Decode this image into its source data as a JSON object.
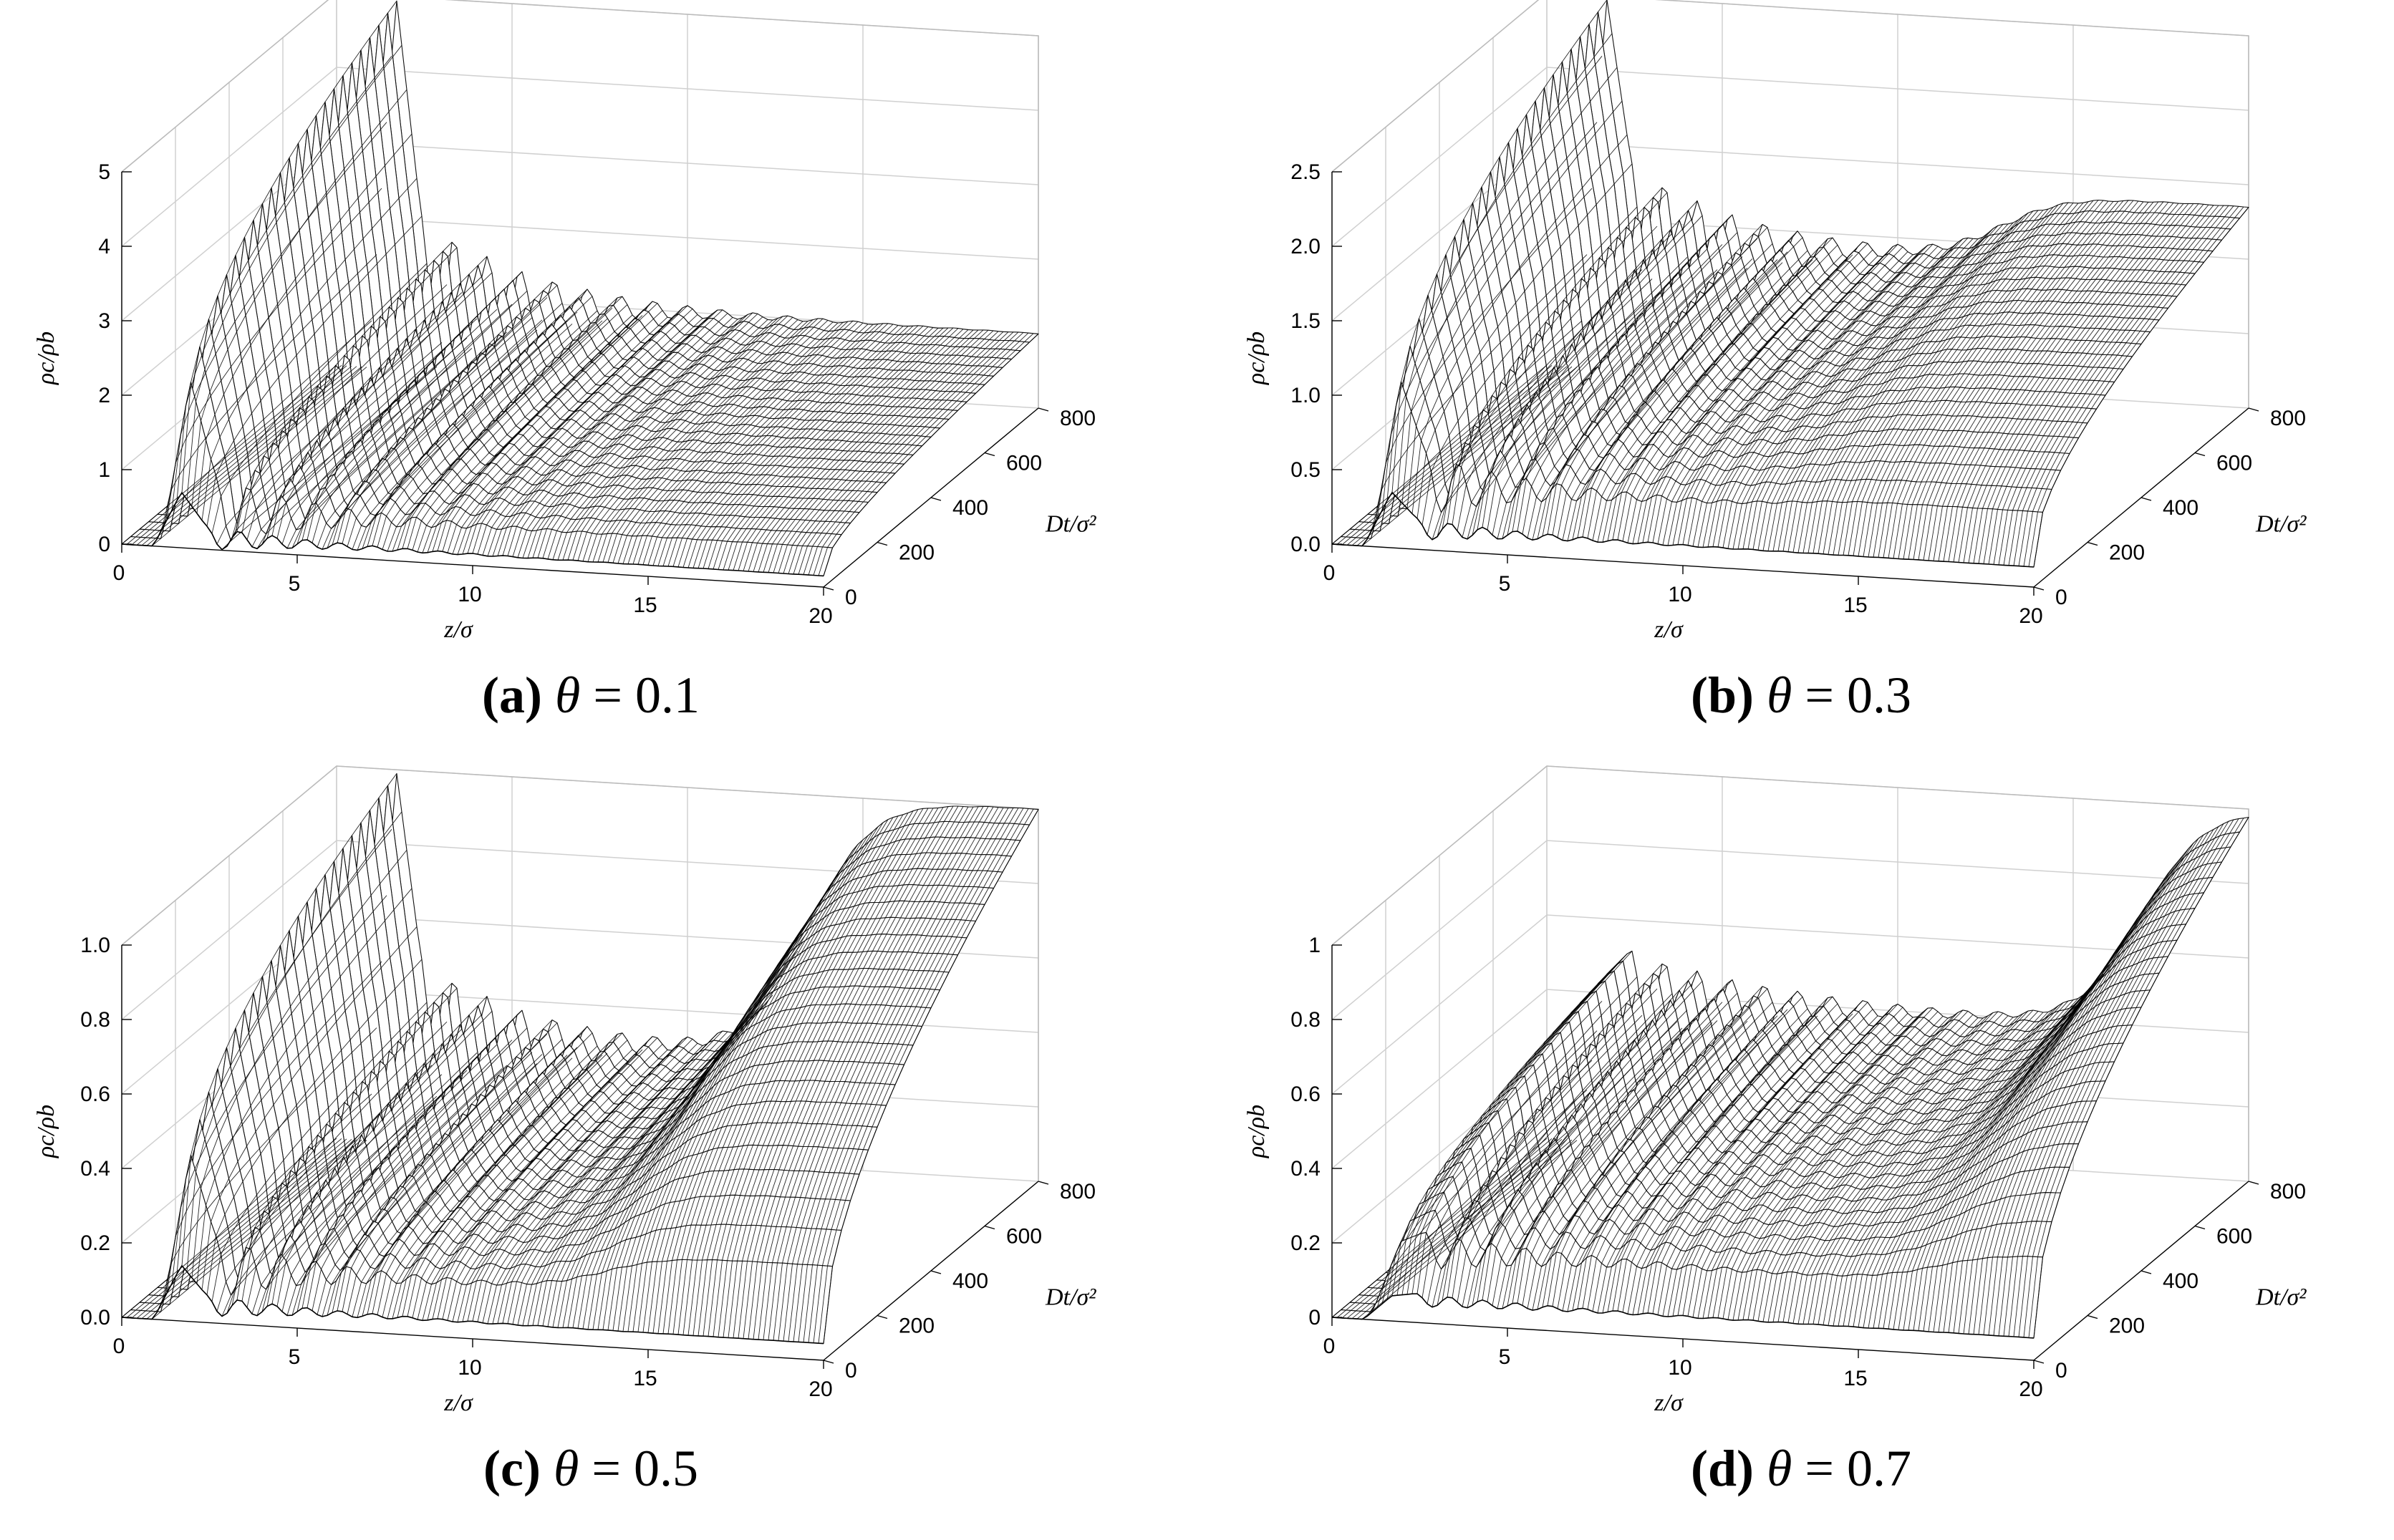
{
  "chart_data": [
    {
      "type": "surface3d",
      "caption": {
        "letter": "(a)",
        "symbol": "θ",
        "value": "= 0.1"
      },
      "xlabel": "z/σ",
      "ylabel": "Dt/σ²",
      "zlabel": "ρc/ρb",
      "x_ticks": [
        "0",
        "5",
        "10",
        "15",
        "20"
      ],
      "y_ticks": [
        "0",
        "200",
        "400",
        "600",
        "800"
      ],
      "z_ticks": [
        "0",
        "1",
        "2",
        "3",
        "4",
        "5"
      ],
      "xlim": [
        0,
        20
      ],
      "ylim": [
        0,
        800
      ],
      "zlim": [
        0,
        5
      ],
      "profile": {
        "peak_z": 1.7,
        "peak_value": 5.0,
        "oscillation": 1.1,
        "osc_decay": 3.0,
        "bulk_level": 1.0,
        "step_center": 22.0,
        "step_height": 0.0
      }
    },
    {
      "type": "surface3d",
      "caption": {
        "letter": "(b)",
        "symbol": "θ",
        "value": "= 0.3"
      },
      "xlabel": "z/σ",
      "ylabel": "Dt/σ²",
      "zlabel": "ρc/ρb",
      "x_ticks": [
        "0",
        "5",
        "10",
        "15",
        "20"
      ],
      "y_ticks": [
        "0",
        "200",
        "400",
        "600",
        "800"
      ],
      "z_ticks": [
        "0.0",
        "0.5",
        "1.0",
        "1.5",
        "2.0",
        "2.5"
      ],
      "xlim": [
        0,
        20
      ],
      "ylim": [
        0,
        800
      ],
      "zlim": [
        0,
        2.5
      ],
      "profile": {
        "peak_z": 1.7,
        "peak_value": 2.5,
        "oscillation": 0.5,
        "osc_decay": 3.0,
        "bulk_level": 0.9,
        "step_center": 13.0,
        "step_height": 0.45
      }
    },
    {
      "type": "surface3d",
      "caption": {
        "letter": "(c)",
        "symbol": "θ",
        "value": "= 0.5"
      },
      "xlabel": "z/σ",
      "ylabel": "Dt/σ²",
      "zlabel": "ρc/ρb",
      "x_ticks": [
        "0",
        "5",
        "10",
        "15",
        "20"
      ],
      "y_ticks": [
        "0",
        "200",
        "400",
        "600",
        "800"
      ],
      "z_ticks": [
        "0.0",
        "0.2",
        "0.4",
        "0.6",
        "0.8",
        "1.0"
      ],
      "xlim": [
        0,
        20
      ],
      "ylim": [
        0,
        800
      ],
      "zlim": [
        0,
        1.0
      ],
      "profile": {
        "peak_z": 1.7,
        "peak_value": 1.0,
        "oscillation": 0.2,
        "osc_decay": 3.0,
        "bulk_level": 0.3,
        "step_center": 13.5,
        "step_height": 0.7
      }
    },
    {
      "type": "surface3d",
      "caption": {
        "letter": "(d)",
        "symbol": "θ",
        "value": "= 0.7"
      },
      "xlabel": "z/σ",
      "ylabel": "Dt/σ²",
      "zlabel": "ρc/ρb",
      "x_ticks": [
        "0",
        "5",
        "10",
        "15",
        "20"
      ],
      "y_ticks": [
        "0",
        "200",
        "400",
        "600",
        "800"
      ],
      "z_ticks": [
        "0",
        "0.2",
        "0.4",
        "0.6",
        "0.8",
        "1"
      ],
      "xlim": [
        0,
        20
      ],
      "ylim": [
        0,
        800
      ],
      "zlim": [
        0,
        1.0
      ],
      "profile": {
        "peak_z": 1.7,
        "peak_value": 0.45,
        "oscillation": 0.12,
        "osc_decay": 4.0,
        "bulk_level": 0.4,
        "step_center": 17.0,
        "step_height": 0.6
      }
    }
  ]
}
